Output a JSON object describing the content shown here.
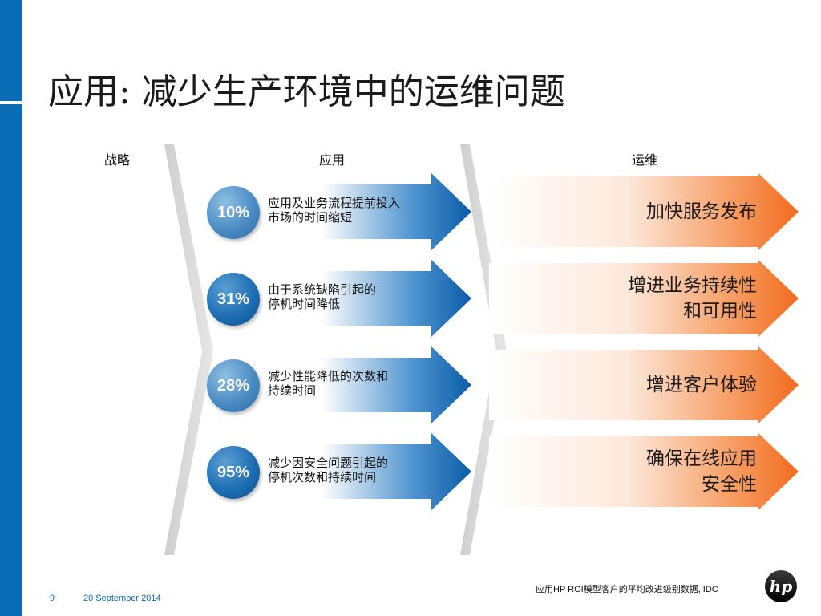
{
  "slide": {
    "title": "应用: 减少生产环境中的运维问题",
    "columns": {
      "strategy": "战略",
      "application": "应用",
      "operations": "运维"
    },
    "rows": [
      {
        "percent": "10%",
        "app_lines": [
          "应用及业务流程提前投入",
          "市场的时间缩短"
        ],
        "ops_lines": [
          "加快服务发布"
        ]
      },
      {
        "percent": "31%",
        "app_lines": [
          "由于系统缺陷引起的",
          "停机时间降低"
        ],
        "ops_lines": [
          "增进业务持续性",
          "和可用性"
        ]
      },
      {
        "percent": "28%",
        "app_lines": [
          "减少性能降低的次数和",
          "持续时间"
        ],
        "ops_lines": [
          "增进客户体验"
        ]
      },
      {
        "percent": "95%",
        "app_lines": [
          "减少因安全问题引起的",
          "停机次数和持续时间"
        ],
        "ops_lines": [
          "确保在线应用",
          "安全性"
        ]
      }
    ],
    "source_note": "应用HP ROI模型客户的平均改进级别数据, IDC",
    "page_number": "9",
    "date": "20 September 2014",
    "logo_text": "hp",
    "colors": {
      "brand_blue": "#0a6cb3",
      "accent_orange": "#f26b1d"
    },
    "icons": {
      "logo": "hp-logo-icon"
    }
  }
}
